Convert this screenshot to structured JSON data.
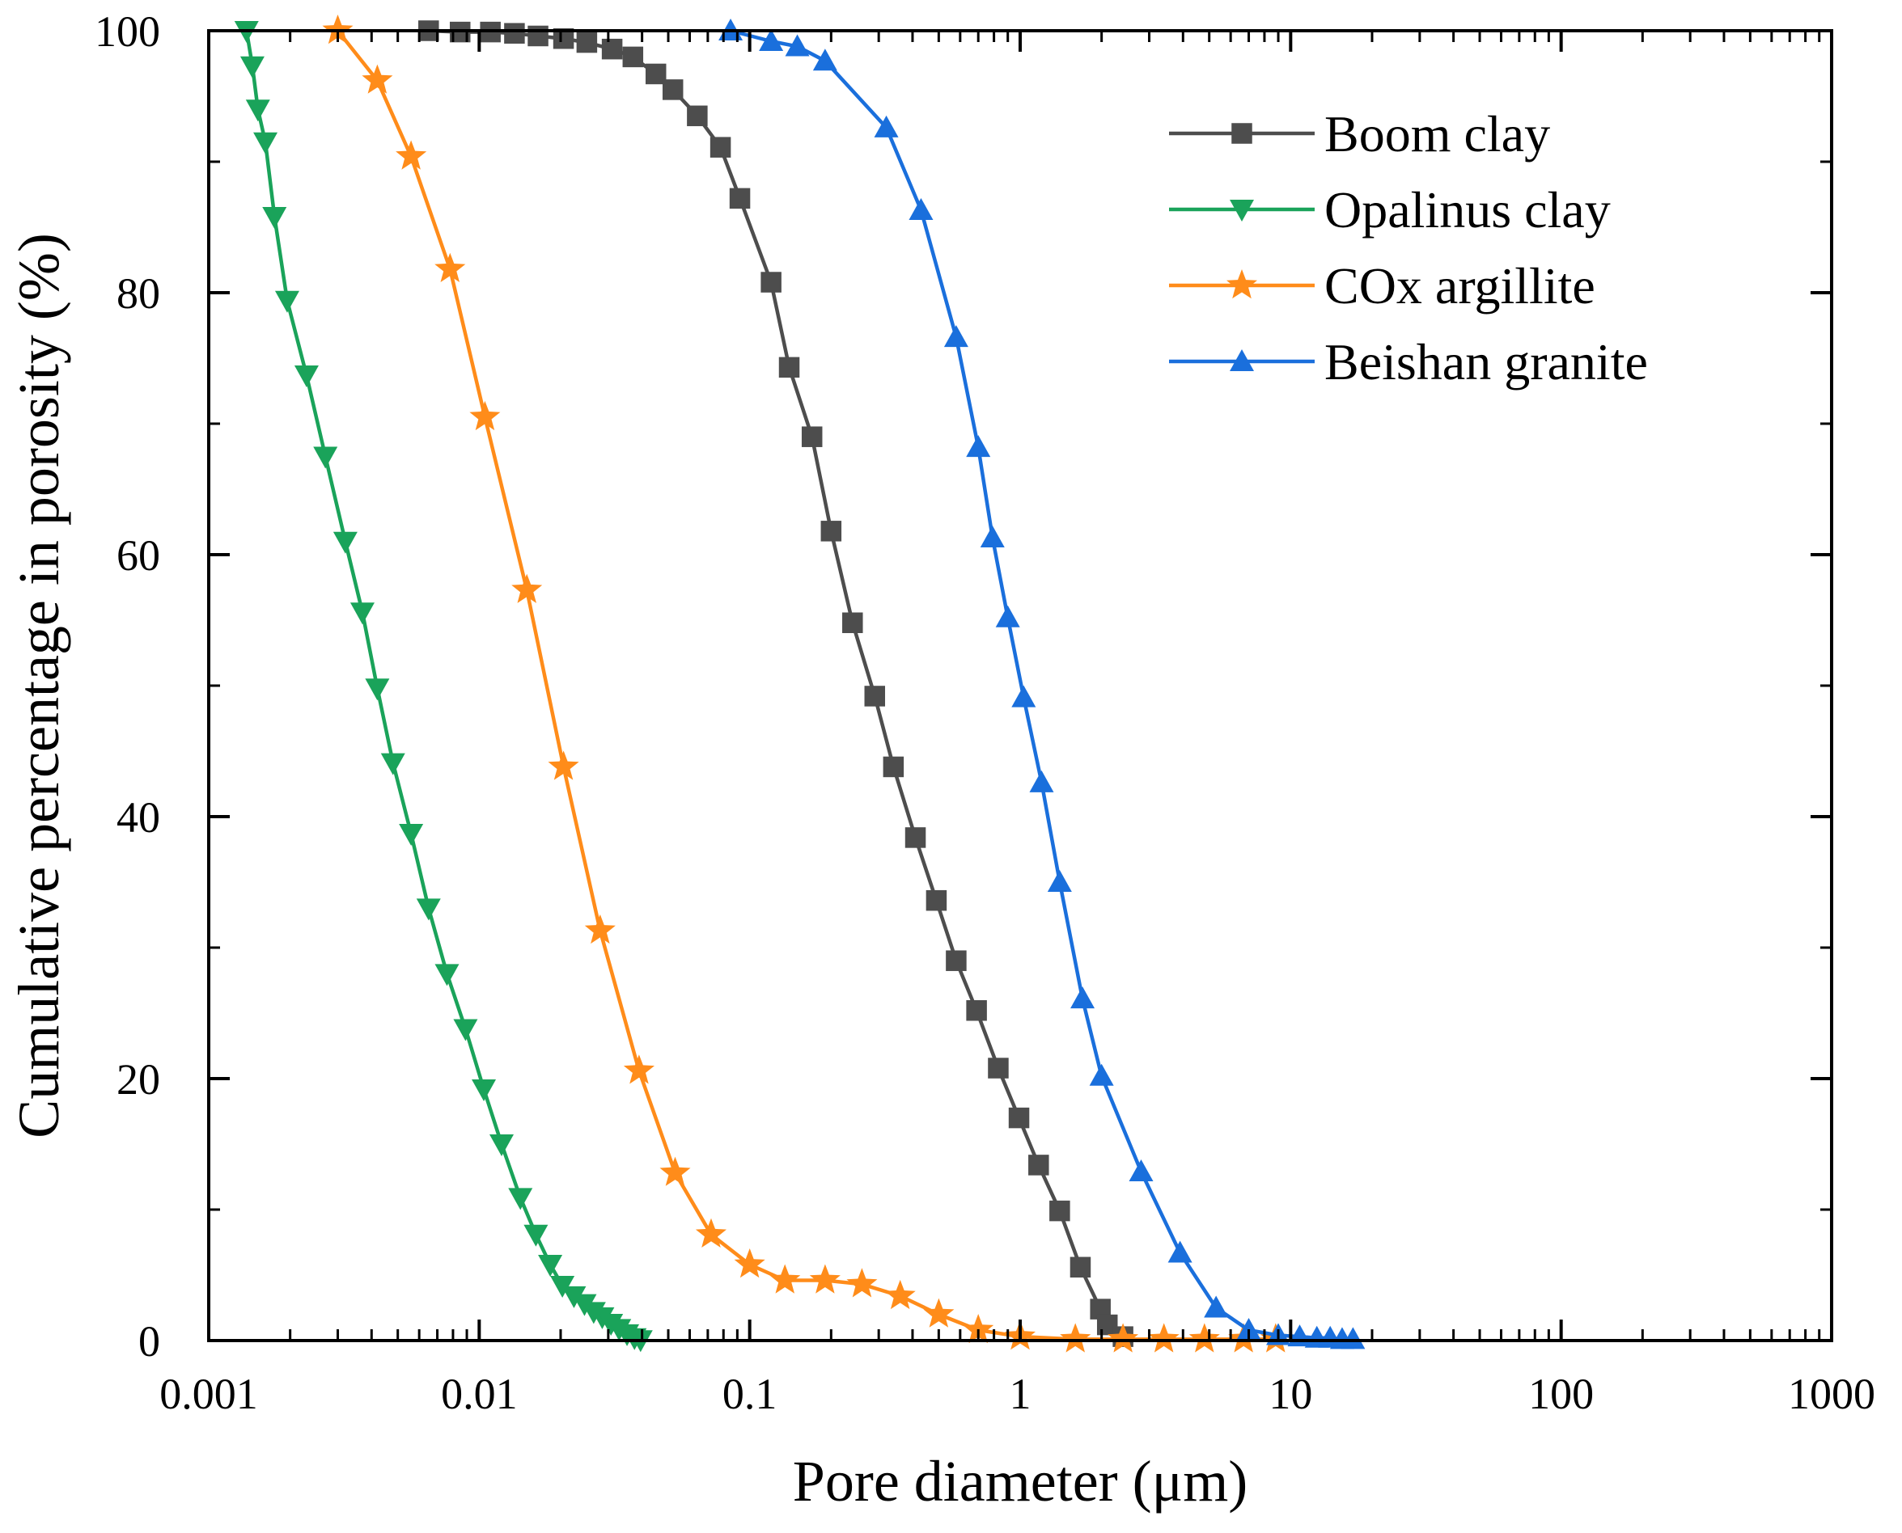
{
  "chart_data": {
    "type": "line",
    "title": "",
    "xlabel": "Pore diameter (μm)",
    "ylabel": "Cumulative percentage in porosity (%)",
    "xscale": "log",
    "xlim": [
      0.001,
      1000
    ],
    "ylim": [
      0,
      100
    ],
    "xticks": [
      {
        "value": 0.001,
        "label": "0.001"
      },
      {
        "value": 0.01,
        "label": "0.01"
      },
      {
        "value": 0.1,
        "label": "0.1"
      },
      {
        "value": 1,
        "label": "1"
      },
      {
        "value": 10,
        "label": "10"
      },
      {
        "value": 100,
        "label": "100"
      },
      {
        "value": 1000,
        "label": "1000"
      }
    ],
    "yticks": [
      {
        "value": 0,
        "label": "0"
      },
      {
        "value": 20,
        "label": "20"
      },
      {
        "value": 40,
        "label": "40"
      },
      {
        "value": 60,
        "label": "60"
      },
      {
        "value": 80,
        "label": "80"
      },
      {
        "value": 100,
        "label": "100"
      }
    ],
    "yminor": [
      10,
      30,
      50,
      70,
      90
    ],
    "grid": false,
    "legend_position": "top-right",
    "series": [
      {
        "name": "Boom clay",
        "color": "#4d4d4d",
        "marker": "square",
        "points": [
          [
            0.0065,
            100
          ],
          [
            0.0085,
            99.9
          ],
          [
            0.011,
            99.9
          ],
          [
            0.0135,
            99.8
          ],
          [
            0.0165,
            99.6
          ],
          [
            0.0205,
            99.4
          ],
          [
            0.025,
            99.1
          ],
          [
            0.031,
            98.6
          ],
          [
            0.037,
            98
          ],
          [
            0.045,
            96.7
          ],
          [
            0.052,
            95.5
          ],
          [
            0.064,
            93.5
          ],
          [
            0.078,
            91.1
          ],
          [
            0.092,
            87.2
          ],
          [
            0.12,
            80.8
          ],
          [
            0.14,
            74.3
          ],
          [
            0.17,
            69
          ],
          [
            0.2,
            61.8
          ],
          [
            0.24,
            54.8
          ],
          [
            0.29,
            49.2
          ],
          [
            0.34,
            43.8
          ],
          [
            0.41,
            38.4
          ],
          [
            0.49,
            33.6
          ],
          [
            0.58,
            29
          ],
          [
            0.69,
            25.2
          ],
          [
            0.83,
            20.8
          ],
          [
            0.99,
            17
          ],
          [
            1.17,
            13.4
          ],
          [
            1.4,
            9.9
          ],
          [
            1.67,
            5.6
          ],
          [
            1.98,
            2.4
          ],
          [
            2.1,
            1.2
          ],
          [
            2.4,
            0.3
          ]
        ]
      },
      {
        "name": "Opalinus clay",
        "color": "#1aa35a",
        "marker": "triangle-down",
        "points": [
          [
            0.00138,
            100
          ],
          [
            0.00145,
            97.3
          ],
          [
            0.00152,
            94
          ],
          [
            0.00162,
            91.5
          ],
          [
            0.00175,
            85.8
          ],
          [
            0.00195,
            79.4
          ],
          [
            0.0023,
            73.7
          ],
          [
            0.0027,
            67.5
          ],
          [
            0.0032,
            61
          ],
          [
            0.0037,
            55.6
          ],
          [
            0.0042,
            49.8
          ],
          [
            0.0048,
            44.1
          ],
          [
            0.0056,
            38.7
          ],
          [
            0.0065,
            33
          ],
          [
            0.0076,
            28
          ],
          [
            0.0089,
            23.8
          ],
          [
            0.0104,
            19.2
          ],
          [
            0.0121,
            15
          ],
          [
            0.0142,
            10.9
          ],
          [
            0.0162,
            8.1
          ],
          [
            0.0183,
            5.8
          ],
          [
            0.0203,
            4.2
          ],
          [
            0.0224,
            3.4
          ],
          [
            0.0245,
            2.8
          ],
          [
            0.0265,
            2.2
          ],
          [
            0.0285,
            1.8
          ],
          [
            0.0307,
            1.3
          ],
          [
            0.0329,
            0.9
          ],
          [
            0.0352,
            0.5
          ],
          [
            0.0375,
            0.2
          ],
          [
            0.0395,
            0.05
          ]
        ]
      },
      {
        "name": "COx argillite",
        "color": "#ff8c1a",
        "marker": "star",
        "points": [
          [
            0.003,
            100
          ],
          [
            0.0042,
            96.2
          ],
          [
            0.0056,
            90.4
          ],
          [
            0.0078,
            81.8
          ],
          [
            0.0105,
            70.5
          ],
          [
            0.015,
            57.3
          ],
          [
            0.0205,
            43.8
          ],
          [
            0.028,
            31.3
          ],
          [
            0.039,
            20.6
          ],
          [
            0.053,
            12.8
          ],
          [
            0.072,
            8.1
          ],
          [
            0.1,
            5.8
          ],
          [
            0.135,
            4.6
          ],
          [
            0.19,
            4.6
          ],
          [
            0.26,
            4.3
          ],
          [
            0.36,
            3.4
          ],
          [
            0.5,
            2
          ],
          [
            0.7,
            0.8
          ],
          [
            1,
            0.3
          ],
          [
            1.6,
            0.1
          ],
          [
            2.4,
            0.1
          ],
          [
            3.4,
            0.1
          ],
          [
            4.8,
            0.1
          ],
          [
            6.7,
            0.1
          ],
          [
            8.8,
            0.1
          ]
        ]
      },
      {
        "name": "Beishan granite",
        "color": "#1a6fdc",
        "marker": "triangle-up",
        "points": [
          [
            0.085,
            100
          ],
          [
            0.12,
            99.2
          ],
          [
            0.15,
            98.8
          ],
          [
            0.19,
            97.7
          ],
          [
            0.32,
            92.6
          ],
          [
            0.43,
            86.3
          ],
          [
            0.58,
            76.6
          ],
          [
            0.7,
            68.2
          ],
          [
            0.79,
            61.3
          ],
          [
            0.9,
            55.2
          ],
          [
            1.03,
            49.1
          ],
          [
            1.2,
            42.6
          ],
          [
            1.4,
            35
          ],
          [
            1.7,
            26.1
          ],
          [
            2,
            20.2
          ],
          [
            2.8,
            12.9
          ],
          [
            3.9,
            6.7
          ],
          [
            5.3,
            2.5
          ],
          [
            7,
            0.8
          ],
          [
            9,
            0.4
          ],
          [
            10.8,
            0.3
          ],
          [
            12.5,
            0.2
          ],
          [
            14,
            0.2
          ],
          [
            15.5,
            0.1
          ],
          [
            17,
            0.1
          ]
        ]
      }
    ]
  }
}
